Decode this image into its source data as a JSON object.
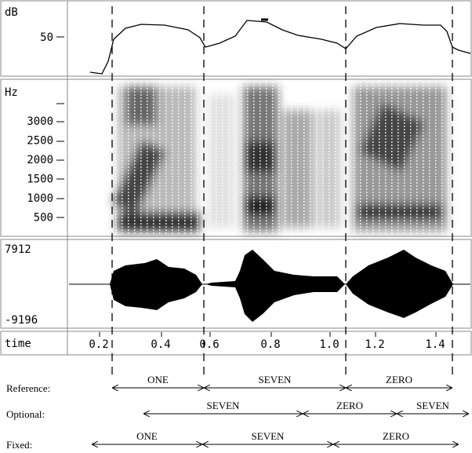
{
  "panels": {
    "db": {
      "unit": "dB",
      "tick": "50"
    },
    "spectrogram": {
      "unit": "Hz",
      "ticks": [
        "3000",
        "2500",
        "2000",
        "1500",
        "1000",
        "500"
      ]
    },
    "waveform": {
      "max": "7912",
      "min": "-9196"
    },
    "time": {
      "label": "time",
      "ticks": [
        "0.2",
        "0.4",
        "0.6",
        "0.8",
        "1.0",
        "1.2",
        "1.4"
      ]
    }
  },
  "alignments": [
    {
      "label": "Reference:",
      "segments": [
        "ONE",
        "SEVEN",
        "ZERO"
      ]
    },
    {
      "label": "Optional:",
      "segments": [
        "SEVEN",
        "ZERO",
        "SEVEN"
      ]
    },
    {
      "label": "Fixed:",
      "segments": [
        "ONE",
        "SEVEN",
        "ZERO"
      ]
    }
  ]
}
